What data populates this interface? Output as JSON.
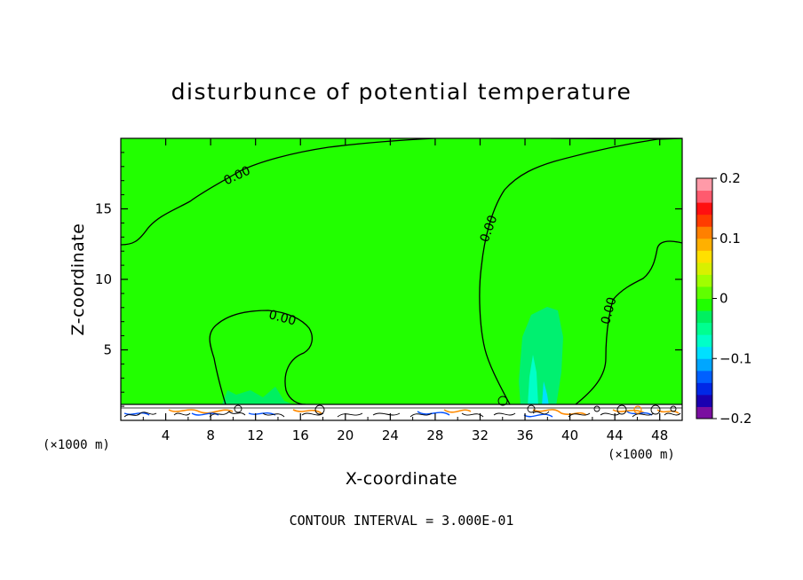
{
  "chart_data": {
    "type": "heatmap",
    "title": "disturbunce of potential temperature",
    "xlabel": "X-coordinate",
    "ylabel": "Z-coordinate",
    "x_unit_label_left": "(×1000 m)",
    "x_unit_label_right": "(×1000 m)",
    "xlim": [
      0,
      50
    ],
    "ylim": [
      0,
      20
    ],
    "x_ticks": [
      "4",
      "8",
      "12",
      "16",
      "20",
      "24",
      "28",
      "32",
      "36",
      "40",
      "44",
      "48"
    ],
    "y_ticks": [
      "5",
      "10",
      "15"
    ],
    "contour_interval_text": "CONTOUR INTERVAL = 3.000E-01",
    "contour_labels": [
      {
        "text": "0.00",
        "x": 10.5,
        "y": 17.1
      },
      {
        "text": "0.00",
        "x": 14.3,
        "y": 7.0
      },
      {
        "text": "0.00",
        "x": 33.1,
        "y": 13.5
      },
      {
        "text": "0.00",
        "x": 43.8,
        "y": 7.7
      }
    ],
    "colorbar": {
      "range": [
        -0.2,
        0.2
      ],
      "tick_labels": [
        "0.2",
        "0.1",
        "0",
        "−0.1",
        "−0.2"
      ],
      "tick_values": [
        0.2,
        0.1,
        0,
        -0.1,
        -0.2
      ],
      "colors": [
        "#7a0fa0",
        "#1a00b0",
        "#0028e6",
        "#0060ff",
        "#00a6ff",
        "#00e0ff",
        "#00ffc8",
        "#00ff90",
        "#00f060",
        "#20ff00",
        "#60ff00",
        "#a0ff00",
        "#d8f000",
        "#ffe000",
        "#ffb000",
        "#ff8000",
        "#ff3c00",
        "#ff1010",
        "#ff5a6e",
        "#ff9aa8"
      ]
    },
    "field_color": "#22ff00"
  }
}
